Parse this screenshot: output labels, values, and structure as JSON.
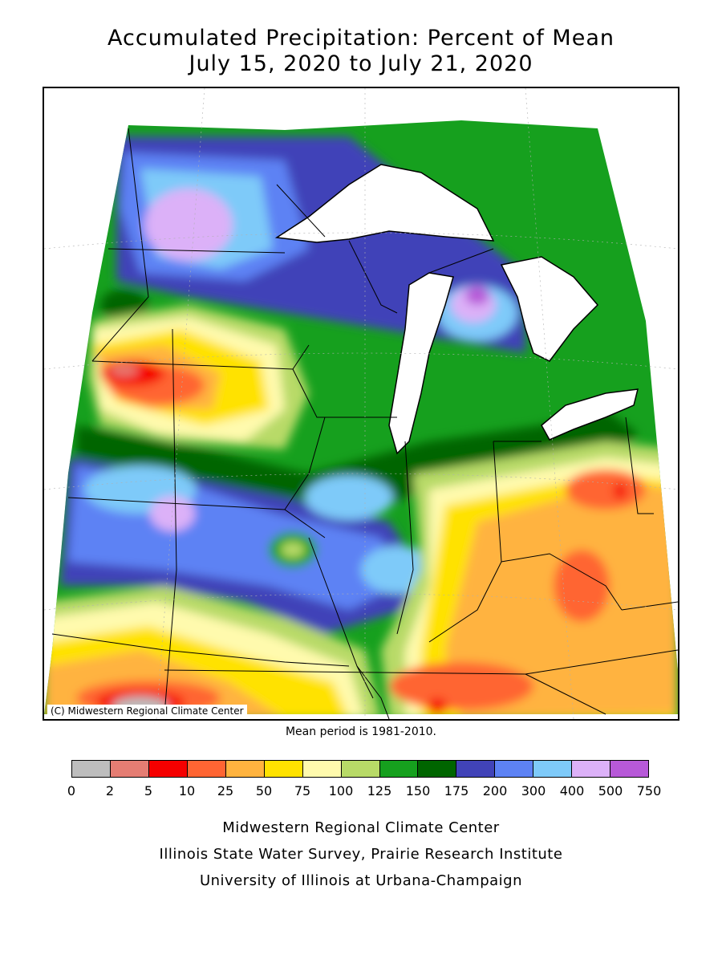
{
  "title": {
    "line1": "Accumulated Precipitation: Percent of Mean",
    "line2": "July 15, 2020 to July 21, 2020"
  },
  "map": {
    "copyright": "(C) Midwestern Regional Climate Center",
    "mean_period": "Mean period is 1981-2010."
  },
  "legend": {
    "colors": [
      "#bdbdbd",
      "#e57d73",
      "#f50000",
      "#ff6533",
      "#ffb33f",
      "#ffe200",
      "#fffaad",
      "#b8da67",
      "#16a01e",
      "#006500",
      "#4143b8",
      "#5d82f4",
      "#7ecaf9",
      "#dcb1f8",
      "#b759d8"
    ],
    "ticks": [
      "0",
      "2",
      "5",
      "10",
      "25",
      "50",
      "75",
      "100",
      "125",
      "150",
      "175",
      "200",
      "300",
      "400",
      "500",
      "750"
    ]
  },
  "credits": {
    "line1": "Midwestern Regional Climate Center",
    "line2": "Illinois State Water Survey, Prairie Research Institute",
    "line3": "University of Illinois at Urbana-Champaign"
  }
}
